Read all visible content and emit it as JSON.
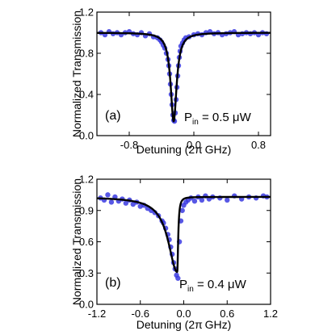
{
  "chart_data": [
    {
      "type": "scatter",
      "panel_label": "(a)",
      "annotation": {
        "main": "P",
        "sub": "in",
        "rest": " = 0.5 μW"
      },
      "xlabel": "Detuning (2π GHz)",
      "ylabel": "Normalized Transmission",
      "xlim": [
        -1.2,
        0.95
      ],
      "ylim": [
        0.0,
        1.2
      ],
      "xticks": [
        -0.8,
        0.0,
        0.8
      ],
      "xtick_labels": [
        "-0.8",
        "0.0",
        "0.8"
      ],
      "yticks": [
        0.0,
        0.4,
        0.8,
        1.2
      ],
      "ytick_labels": [
        "0.0",
        "0.4",
        "0.8",
        "1.2"
      ],
      "grid": false,
      "marker_color": "#3a3ae0",
      "fit_color": "#000000",
      "series": [
        {
          "kind": "points",
          "x": [
            -1.15,
            -1.1,
            -1.05,
            -1.0,
            -0.95,
            -0.9,
            -0.85,
            -0.8,
            -0.75,
            -0.7,
            -0.65,
            -0.6,
            -0.55,
            -0.5,
            -0.45,
            -0.42,
            -0.4,
            -0.38,
            -0.36,
            -0.34,
            -0.32,
            -0.31,
            -0.3,
            -0.29,
            -0.28,
            -0.27,
            -0.26,
            -0.25,
            -0.24,
            -0.23,
            -0.22,
            -0.21,
            -0.2,
            -0.19,
            -0.18,
            -0.17,
            -0.16,
            -0.14,
            -0.12,
            -0.1,
            -0.06,
            0.0,
            0.05,
            0.1,
            0.15,
            0.2,
            0.25,
            0.3,
            0.35,
            0.4,
            0.45,
            0.5,
            0.55,
            0.6,
            0.65,
            0.7,
            0.75,
            0.8,
            0.85,
            0.9
          ],
          "y": [
            1.0,
            0.98,
            1.01,
            0.99,
            1.0,
            0.98,
            1.0,
            1.01,
            0.99,
            0.98,
            1.0,
            0.97,
            0.99,
            0.96,
            0.95,
            0.93,
            0.91,
            0.88,
            0.85,
            0.8,
            0.74,
            0.68,
            0.6,
            0.5,
            0.4,
            0.3,
            0.2,
            0.15,
            0.14,
            0.22,
            0.35,
            0.47,
            0.58,
            0.68,
            0.76,
            0.82,
            0.87,
            0.9,
            0.93,
            0.95,
            0.96,
            0.98,
            0.99,
            0.98,
            1.0,
            1.01,
            0.99,
            1.0,
            0.98,
            0.99,
            1.0,
            1.01,
            0.98,
            0.99,
            1.0,
            0.99,
            1.0,
            0.98,
            1.0,
            0.99
          ]
        },
        {
          "kind": "fit",
          "model": "lorentzian",
          "center": -0.25,
          "half_width": 0.045,
          "depth": 0.86,
          "baseline": 1.0
        }
      ]
    },
    {
      "type": "scatter",
      "panel_label": "(b)",
      "annotation": {
        "main": "P",
        "sub": "in",
        "rest": " = 0.4 μW"
      },
      "xlabel": "Detuning (2π GHz)",
      "ylabel": "Normalized Transmission",
      "xlim": [
        -1.2,
        1.2
      ],
      "ylim": [
        0.0,
        1.2
      ],
      "xticks": [
        -1.2,
        -0.6,
        0.0,
        0.6,
        1.2
      ],
      "xtick_labels": [
        "-1.2",
        "-0.6",
        "0.0",
        "0.6",
        "1.2"
      ],
      "yticks": [
        0.0,
        0.3,
        0.6,
        0.9,
        1.2
      ],
      "ytick_labels": [
        "0.0",
        "0.3",
        "0.6",
        "0.9",
        "1.2"
      ],
      "grid": false,
      "marker_color": "#3a3ae0",
      "fit_color": "#000000",
      "series": [
        {
          "kind": "points",
          "x": [
            -1.15,
            -1.1,
            -1.05,
            -1.0,
            -0.95,
            -0.9,
            -0.85,
            -0.8,
            -0.75,
            -0.7,
            -0.65,
            -0.6,
            -0.55,
            -0.5,
            -0.45,
            -0.4,
            -0.35,
            -0.3,
            -0.28,
            -0.25,
            -0.22,
            -0.2,
            -0.18,
            -0.16,
            -0.14,
            -0.12,
            -0.1,
            -0.08,
            -0.06,
            -0.04,
            -0.02,
            0.0,
            0.03,
            0.06,
            0.1,
            0.15,
            0.2,
            0.25,
            0.3,
            0.35,
            0.4,
            0.5,
            0.6,
            0.7,
            0.8,
            0.9,
            1.0,
            1.1,
            1.15
          ],
          "y": [
            1.02,
            1.0,
            1.05,
            0.98,
            1.03,
            0.99,
            1.01,
            0.97,
            1.0,
            0.96,
            0.98,
            0.94,
            0.95,
            0.92,
            0.9,
            0.88,
            0.85,
            0.8,
            0.78,
            0.73,
            0.67,
            0.62,
            0.55,
            0.48,
            0.4,
            0.34,
            0.28,
            0.25,
            0.6,
            0.8,
            0.9,
            0.95,
            0.98,
            1.0,
            1.02,
            0.99,
            1.03,
            1.0,
            1.04,
            1.01,
            1.03,
            1.02,
            1.0,
            1.04,
            1.01,
            1.03,
            1.02,
            1.04,
            1.03
          ]
        },
        {
          "kind": "fit",
          "model": "asymmetric-lorentzian",
          "center": -0.09,
          "half_width_left": 0.15,
          "half_width_right": 0.015,
          "depth": 0.72,
          "baseline": 1.03
        }
      ]
    }
  ]
}
